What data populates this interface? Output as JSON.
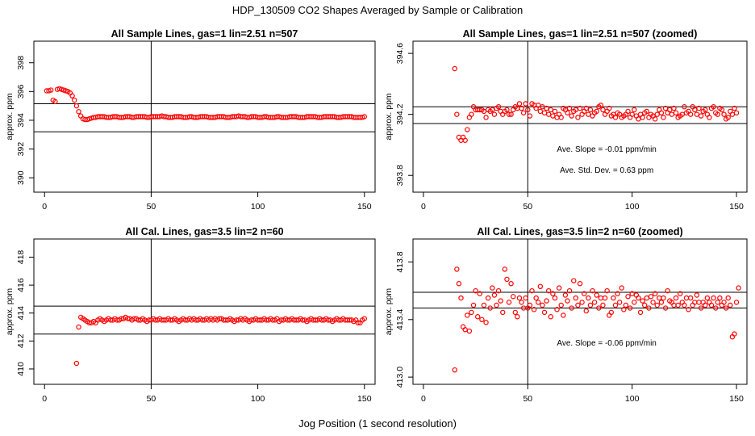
{
  "figure": {
    "title": "HDP_130509  CO2 Shapes Averaged by Sample or Calibration",
    "xlabel": "Jog Position (1 second resolution)",
    "series_color": "#ff0000"
  },
  "chart_data": [
    {
      "type": "scatter",
      "title": "All Sample Lines, gas=1 lin=2.51 n=507",
      "xlabel": "",
      "ylabel": "approx. ppm",
      "xlim": [
        -5,
        155
      ],
      "ylim": [
        389,
        399.5
      ],
      "xticks": [
        0,
        50,
        100,
        150
      ],
      "yticks": [
        390,
        392,
        394,
        396,
        398
      ],
      "hlines": [
        395.15,
        393.2
      ],
      "vline": 50,
      "x_start": 1,
      "y": [
        396.05,
        396.05,
        396.1,
        395.4,
        395.3,
        396.15,
        396.2,
        396.15,
        396.1,
        396.05,
        396.0,
        395.9,
        395.7,
        395.4,
        395.0,
        394.6,
        394.3,
        394.1,
        394.05,
        394.05,
        394.1,
        394.15,
        394.2,
        394.2,
        394.25,
        394.25,
        394.25,
        394.25,
        394.2,
        394.2,
        394.2,
        394.25,
        394.25,
        394.25,
        394.2,
        394.2,
        394.2,
        394.25,
        394.25,
        394.25,
        394.2,
        394.2,
        394.25,
        394.25,
        394.25,
        394.25,
        394.25,
        394.2,
        394.2,
        394.25,
        394.25,
        394.25,
        394.25,
        394.25,
        394.3,
        394.25,
        394.25,
        394.2,
        394.2,
        394.2,
        394.25,
        394.25,
        394.25,
        394.25,
        394.2,
        394.2,
        394.2,
        394.25,
        394.25,
        394.2,
        394.2,
        394.2,
        394.25,
        394.25,
        394.25,
        394.25,
        394.2,
        394.2,
        394.2,
        394.2,
        394.25,
        394.25,
        394.25,
        394.25,
        394.2,
        394.2,
        394.2,
        394.25,
        394.25,
        394.25,
        394.3,
        394.25,
        394.25,
        394.25,
        394.2,
        394.2,
        394.25,
        394.25,
        394.25,
        394.2,
        394.2,
        394.2,
        394.25,
        394.25,
        394.2,
        394.2,
        394.2,
        394.2,
        394.25,
        394.25,
        394.2,
        394.2,
        394.2,
        394.2,
        394.25,
        394.25,
        394.25,
        394.25,
        394.2,
        394.2,
        394.2,
        394.2,
        394.25,
        394.25,
        394.25,
        394.25,
        394.25,
        394.2,
        394.2,
        394.2,
        394.25,
        394.25,
        394.25,
        394.25,
        394.25,
        394.25,
        394.2,
        394.2,
        394.2,
        394.25,
        394.25,
        394.25,
        394.25,
        394.25,
        394.2,
        394.2,
        394.2,
        394.2,
        394.2,
        394.25
      ],
      "annotations": []
    },
    {
      "type": "scatter",
      "title": "All Sample Lines, gas=1 lin=2.51 n=507 (zoomed)",
      "xlabel": "",
      "ylabel": "approx. ppm",
      "xlim": [
        -5,
        155
      ],
      "ylim": [
        393.69,
        394.68
      ],
      "xticks": [
        0,
        50,
        100,
        150
      ],
      "yticks": [
        393.8,
        394.2,
        394.6
      ],
      "hlines": [
        394.25,
        394.14
      ],
      "vline": 50,
      "x_start": 15,
      "y": [
        394.5,
        394.2,
        394.05,
        394.03,
        394.05,
        394.03,
        394.1,
        394.18,
        394.2,
        394.25,
        394.23,
        394.23,
        394.23,
        394.23,
        394.22,
        394.18,
        394.23,
        394.22,
        394.23,
        394.2,
        394.24,
        394.25,
        394.22,
        394.2,
        394.22,
        394.23,
        394.2,
        394.2,
        394.23,
        394.25,
        394.24,
        394.27,
        394.24,
        394.21,
        394.27,
        394.23,
        394.19,
        394.27,
        394.26,
        394.24,
        394.26,
        394.22,
        394.25,
        394.21,
        394.24,
        394.2,
        394.23,
        394.19,
        394.22,
        394.18,
        394.2,
        394.18,
        394.24,
        394.23,
        394.21,
        394.24,
        394.19,
        394.22,
        394.23,
        394.18,
        394.24,
        394.2,
        394.22,
        394.24,
        394.2,
        394.23,
        394.19,
        394.21,
        394.22,
        394.25,
        394.26,
        394.23,
        394.2,
        394.22,
        394.24,
        394.19,
        394.2,
        394.18,
        394.21,
        394.2,
        394.18,
        394.19,
        394.2,
        394.22,
        394.18,
        394.2,
        394.23,
        394.19,
        394.17,
        394.2,
        394.18,
        394.21,
        394.22,
        394.18,
        394.2,
        394.19,
        394.17,
        394.2,
        394.23,
        394.21,
        394.18,
        394.24,
        394.21,
        394.23,
        394.2,
        394.24,
        394.21,
        394.18,
        394.19,
        394.2,
        394.25,
        394.21,
        394.22,
        394.2,
        394.25,
        394.23,
        394.2,
        394.24,
        394.19,
        394.22,
        394.23,
        394.2,
        394.18,
        394.24,
        394.25,
        394.21,
        394.2,
        394.24,
        394.23,
        394.2,
        394.17,
        394.18,
        394.22,
        394.2,
        394.24,
        394.21
      ],
      "annotations": [
        "Ave. Slope =  -0.01  ppm/min",
        "Ave. Std. Dev. =  0.63  ppm"
      ]
    },
    {
      "type": "scatter",
      "title": "All Cal. Lines, gas=3.5 lin=2 n=60",
      "xlabel": "",
      "ylabel": "approx. ppm",
      "xlim": [
        -5,
        155
      ],
      "ylim": [
        408.9,
        419.3
      ],
      "xticks": [
        0,
        50,
        100,
        150
      ],
      "yticks": [
        410,
        412,
        414,
        416,
        418
      ],
      "hlines": [
        414.5,
        412.5
      ],
      "vline": 50,
      "x_start": 15,
      "y": [
        410.4,
        413.0,
        413.7,
        413.6,
        413.5,
        413.4,
        413.3,
        413.3,
        413.4,
        413.3,
        413.5,
        413.6,
        413.5,
        413.4,
        413.5,
        413.6,
        413.5,
        413.5,
        413.6,
        413.5,
        413.5,
        413.6,
        413.6,
        413.7,
        413.6,
        413.6,
        413.5,
        413.6,
        413.6,
        413.5,
        413.5,
        413.6,
        413.5,
        413.4,
        413.5,
        413.5,
        413.6,
        413.5,
        413.5,
        413.6,
        413.5,
        413.5,
        413.5,
        413.6,
        413.5,
        413.5,
        413.6,
        413.5,
        413.4,
        413.5,
        413.6,
        413.5,
        413.5,
        413.6,
        413.5,
        413.6,
        413.5,
        413.5,
        413.6,
        413.5,
        413.5,
        413.6,
        413.5,
        413.6,
        413.5,
        413.6,
        413.5,
        413.6,
        413.6,
        413.5,
        413.5,
        413.5,
        413.6,
        413.5,
        413.4,
        413.5,
        413.5,
        413.6,
        413.5,
        413.6,
        413.5,
        413.4,
        413.5,
        413.5,
        413.6,
        413.5,
        413.5,
        413.5,
        413.6,
        413.5,
        413.5,
        413.6,
        413.5,
        413.5,
        413.6,
        413.4,
        413.5,
        413.5,
        413.6,
        413.5,
        413.5,
        413.6,
        413.5,
        413.5,
        413.5,
        413.6,
        413.5,
        413.5,
        413.4,
        413.5,
        413.6,
        413.5,
        413.5,
        413.5,
        413.6,
        413.5,
        413.5,
        413.6,
        413.5,
        413.5,
        413.4,
        413.5,
        413.6,
        413.5,
        413.5,
        413.6,
        413.5,
        413.5,
        413.5,
        413.5,
        413.4,
        413.5,
        413.3,
        413.3,
        413.5,
        413.6
      ],
      "annotations": []
    },
    {
      "type": "scatter",
      "title": "All Cal. Lines, gas=3.5 lin=2 n=60 (zoomed)",
      "xlabel": "",
      "ylabel": "approx. ppm",
      "xlim": [
        -5,
        155
      ],
      "ylim": [
        412.95,
        413.96
      ],
      "xticks": [
        0,
        50,
        100,
        150
      ],
      "yticks": [
        413.0,
        413.4,
        413.8
      ],
      "hlines": [
        413.59,
        413.48
      ],
      "vline": 50,
      "x_start": 15,
      "y": [
        413.05,
        413.75,
        413.65,
        413.55,
        413.35,
        413.33,
        413.43,
        413.32,
        413.45,
        413.5,
        413.6,
        413.42,
        413.58,
        413.4,
        413.5,
        413.38,
        413.55,
        413.48,
        413.62,
        413.57,
        413.5,
        413.6,
        413.53,
        413.45,
        413.75,
        413.68,
        413.52,
        413.65,
        413.56,
        413.45,
        413.42,
        413.55,
        413.52,
        413.48,
        413.55,
        413.48,
        413.5,
        413.6,
        413.47,
        413.55,
        413.52,
        413.63,
        413.5,
        413.45,
        413.53,
        413.6,
        413.42,
        413.58,
        413.55,
        413.47,
        413.62,
        413.5,
        413.43,
        413.57,
        413.53,
        413.6,
        413.48,
        413.67,
        413.55,
        413.5,
        413.65,
        413.52,
        413.58,
        413.46,
        413.55,
        413.5,
        413.6,
        413.52,
        413.57,
        413.48,
        413.55,
        413.5,
        413.55,
        413.6,
        413.43,
        413.45,
        413.55,
        413.5,
        413.58,
        413.52,
        413.62,
        413.47,
        413.5,
        413.56,
        413.48,
        413.58,
        413.52,
        413.57,
        413.55,
        413.45,
        413.53,
        413.5,
        413.55,
        413.48,
        413.56,
        413.52,
        413.58,
        413.5,
        413.55,
        413.52,
        413.55,
        413.48,
        413.6,
        413.53,
        413.52,
        413.5,
        413.55,
        413.5,
        413.58,
        413.52,
        413.5,
        413.55,
        413.47,
        413.55,
        413.5,
        413.52,
        413.57,
        413.52,
        413.48,
        413.52,
        413.5,
        413.55,
        413.52,
        413.5,
        413.55,
        413.48,
        413.52,
        413.55,
        413.5,
        413.52,
        413.48,
        413.55,
        413.5,
        413.28,
        413.3,
        413.52,
        413.62
      ],
      "annotations": [
        "Ave. Slope =  -0.06  ppm/min"
      ]
    }
  ]
}
